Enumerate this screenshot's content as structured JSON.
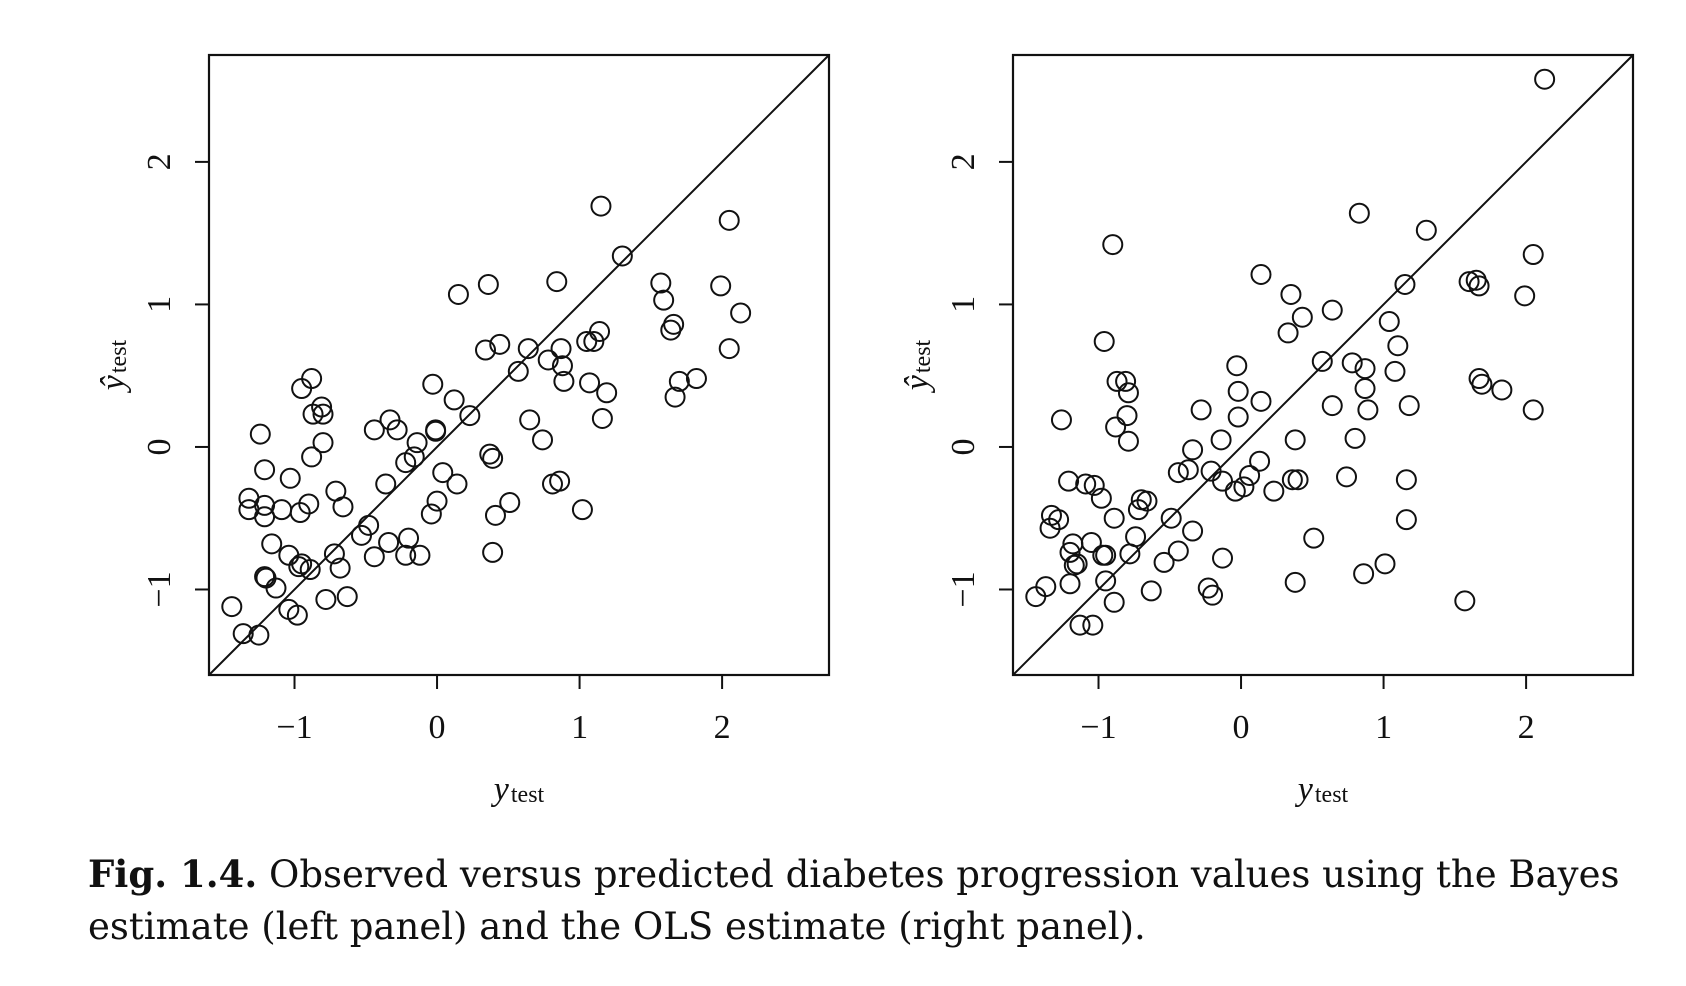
{
  "caption": {
    "label": "Fig. 1.4.",
    "text": "Observed versus predicted diabetes progression values using the Bayes estimate (left panel) and the OLS estimate (right panel)."
  },
  "chart_data": [
    {
      "type": "scatter",
      "xlabel": {
        "main": "y",
        "sub": "test"
      },
      "ylabel": {
        "main": "ŷ",
        "sub": "test"
      },
      "xlim": [
        -1.6,
        2.75
      ],
      "ylim": [
        -1.6,
        2.75
      ],
      "x_ticks": [
        -1,
        0,
        1,
        2
      ],
      "y_ticks": [
        -1,
        0,
        1,
        2
      ],
      "x_tick_labels": [
        "−1",
        "0",
        "1",
        "2"
      ],
      "y_tick_labels": [
        "−1",
        "0",
        "1",
        "2"
      ],
      "reference_line": "y = x",
      "grid": false,
      "points": [
        [
          -1.44,
          -1.12
        ],
        [
          -1.36,
          -1.31
        ],
        [
          -1.25,
          -1.32
        ],
        [
          -1.32,
          -0.44
        ],
        [
          -1.32,
          -0.36
        ],
        [
          -1.24,
          0.09
        ],
        [
          -1.21,
          -0.16
        ],
        [
          -1.21,
          -0.41
        ],
        [
          -1.21,
          -0.49
        ],
        [
          -1.16,
          -0.68
        ],
        [
          -1.13,
          -0.99
        ],
        [
          -1.2,
          -0.92
        ],
        [
          -1.21,
          -0.91
        ],
        [
          -1.09,
          -0.44
        ],
        [
          -1.03,
          -0.22
        ],
        [
          -1.04,
          -0.76
        ],
        [
          -1.04,
          -1.14
        ],
        [
          -0.96,
          -0.46
        ],
        [
          -0.97,
          -0.84
        ],
        [
          -0.95,
          -0.82
        ],
        [
          -0.98,
          -1.18
        ],
        [
          -0.89,
          -0.86
        ],
        [
          -0.9,
          -0.4
        ],
        [
          -0.95,
          0.41
        ],
        [
          -0.88,
          0.48
        ],
        [
          -0.87,
          0.23
        ],
        [
          -0.8,
          0.23
        ],
        [
          -0.81,
          0.28
        ],
        [
          -0.8,
          0.03
        ],
        [
          -0.88,
          -0.07
        ],
        [
          -0.78,
          -1.07
        ],
        [
          -0.72,
          -0.75
        ],
        [
          -0.71,
          -0.31
        ],
        [
          -0.66,
          -0.42
        ],
        [
          -0.68,
          -0.85
        ],
        [
          -0.63,
          -1.05
        ],
        [
          -0.53,
          -0.62
        ],
        [
          -0.48,
          -0.55
        ],
        [
          -0.44,
          0.12
        ],
        [
          -0.44,
          -0.77
        ],
        [
          -0.36,
          -0.26
        ],
        [
          -0.34,
          -0.67
        ],
        [
          -0.33,
          0.19
        ],
        [
          -0.28,
          0.12
        ],
        [
          -0.22,
          -0.11
        ],
        [
          -0.22,
          -0.76
        ],
        [
          -0.2,
          -0.64
        ],
        [
          -0.16,
          -0.07
        ],
        [
          -0.14,
          0.03
        ],
        [
          -0.12,
          -0.76
        ],
        [
          -0.04,
          -0.47
        ],
        [
          -0.03,
          0.44
        ],
        [
          -0.01,
          0.11
        ],
        [
          -0.01,
          0.12
        ],
        [
          0.0,
          -0.38
        ],
        [
          0.04,
          -0.18
        ],
        [
          0.12,
          0.33
        ],
        [
          0.14,
          -0.26
        ],
        [
          0.15,
          1.07
        ],
        [
          0.23,
          0.22
        ],
        [
          0.34,
          0.68
        ],
        [
          0.36,
          1.14
        ],
        [
          0.37,
          -0.05
        ],
        [
          0.39,
          -0.08
        ],
        [
          0.39,
          -0.74
        ],
        [
          0.41,
          -0.48
        ],
        [
          0.44,
          0.72
        ],
        [
          0.51,
          -0.39
        ],
        [
          0.57,
          0.53
        ],
        [
          0.64,
          0.69
        ],
        [
          0.65,
          0.19
        ],
        [
          0.74,
          0.05
        ],
        [
          0.78,
          0.61
        ],
        [
          0.81,
          -0.26
        ],
        [
          0.84,
          1.16
        ],
        [
          0.86,
          -0.24
        ],
        [
          0.87,
          0.69
        ],
        [
          0.88,
          0.57
        ],
        [
          0.89,
          0.46
        ],
        [
          1.02,
          -0.44
        ],
        [
          1.05,
          0.74
        ],
        [
          1.07,
          0.45
        ],
        [
          1.1,
          0.74
        ],
        [
          1.14,
          0.81
        ],
        [
          1.15,
          1.69
        ],
        [
          1.16,
          0.2
        ],
        [
          1.19,
          0.38
        ],
        [
          1.3,
          1.34
        ],
        [
          1.57,
          1.15
        ],
        [
          1.59,
          1.03
        ],
        [
          1.64,
          0.82
        ],
        [
          1.66,
          0.86
        ],
        [
          1.67,
          0.35
        ],
        [
          1.7,
          0.46
        ],
        [
          1.82,
          0.48
        ],
        [
          1.99,
          1.13
        ],
        [
          2.05,
          1.59
        ],
        [
          2.05,
          0.69
        ],
        [
          2.13,
          0.94
        ]
      ]
    },
    {
      "type": "scatter",
      "xlabel": {
        "main": "y",
        "sub": "test"
      },
      "ylabel": {
        "main": "ŷ",
        "sub": "test"
      },
      "xlim": [
        -1.6,
        2.75
      ],
      "ylim": [
        -1.6,
        2.75
      ],
      "x_ticks": [
        -1,
        0,
        1,
        2
      ],
      "y_ticks": [
        -1,
        0,
        1,
        2
      ],
      "x_tick_labels": [
        "−1",
        "0",
        "1",
        "2"
      ],
      "y_tick_labels": [
        "−1",
        "0",
        "1",
        "2"
      ],
      "reference_line": "y = x",
      "grid": false,
      "points": [
        [
          -1.44,
          -1.05
        ],
        [
          -1.37,
          -0.98
        ],
        [
          -1.34,
          -0.57
        ],
        [
          -1.33,
          -0.48
        ],
        [
          -1.28,
          -0.51
        ],
        [
          -1.26,
          0.19
        ],
        [
          -1.21,
          -0.24
        ],
        [
          -1.2,
          -0.74
        ],
        [
          -1.2,
          -0.96
        ],
        [
          -1.18,
          -0.68
        ],
        [
          -1.17,
          -0.83
        ],
        [
          -1.15,
          -0.82
        ],
        [
          -1.13,
          -1.25
        ],
        [
          -1.09,
          -0.26
        ],
        [
          -1.05,
          -0.67
        ],
        [
          -1.04,
          -1.25
        ],
        [
          -1.03,
          -0.27
        ],
        [
          -0.98,
          -0.36
        ],
        [
          -0.97,
          -0.76
        ],
        [
          -0.96,
          0.74
        ],
        [
          -0.95,
          -0.94
        ],
        [
          -0.95,
          -0.76
        ],
        [
          -0.9,
          1.42
        ],
        [
          -0.89,
          -1.09
        ],
        [
          -0.89,
          -0.5
        ],
        [
          -0.88,
          0.14
        ],
        [
          -0.87,
          0.46
        ],
        [
          -0.81,
          0.46
        ],
        [
          -0.8,
          0.22
        ],
        [
          -0.79,
          0.38
        ],
        [
          -0.79,
          0.04
        ],
        [
          -0.78,
          -0.75
        ],
        [
          -0.74,
          -0.63
        ],
        [
          -0.72,
          -0.44
        ],
        [
          -0.7,
          -0.37
        ],
        [
          -0.66,
          -0.38
        ],
        [
          -0.63,
          -1.01
        ],
        [
          -0.54,
          -0.81
        ],
        [
          -0.49,
          -0.5
        ],
        [
          -0.44,
          -0.18
        ],
        [
          -0.44,
          -0.73
        ],
        [
          -0.37,
          -0.16
        ],
        [
          -0.34,
          -0.02
        ],
        [
          -0.34,
          -0.59
        ],
        [
          -0.28,
          0.26
        ],
        [
          -0.23,
          -0.99
        ],
        [
          -0.21,
          -0.17
        ],
        [
          -0.2,
          -1.04
        ],
        [
          -0.14,
          0.05
        ],
        [
          -0.13,
          -0.78
        ],
        [
          -0.13,
          -0.24
        ],
        [
          -0.04,
          -0.31
        ],
        [
          -0.02,
          0.21
        ],
        [
          -0.02,
          0.39
        ],
        [
          -0.03,
          0.57
        ],
        [
          0.02,
          -0.28
        ],
        [
          0.06,
          -0.2
        ],
        [
          0.13,
          -0.1
        ],
        [
          0.14,
          0.32
        ],
        [
          0.14,
          1.21
        ],
        [
          0.23,
          -0.31
        ],
        [
          0.33,
          0.8
        ],
        [
          0.35,
          1.07
        ],
        [
          0.36,
          -0.23
        ],
        [
          0.38,
          -0.95
        ],
        [
          0.38,
          0.05
        ],
        [
          0.4,
          -0.23
        ],
        [
          0.43,
          0.91
        ],
        [
          0.51,
          -0.64
        ],
        [
          0.57,
          0.6
        ],
        [
          0.64,
          0.96
        ],
        [
          0.64,
          0.29
        ],
        [
          0.74,
          -0.21
        ],
        [
          0.78,
          0.59
        ],
        [
          0.8,
          0.06
        ],
        [
          0.83,
          1.64
        ],
        [
          0.86,
          -0.89
        ],
        [
          0.87,
          0.41
        ],
        [
          0.87,
          0.55
        ],
        [
          0.89,
          0.26
        ],
        [
          1.01,
          -0.82
        ],
        [
          1.04,
          0.88
        ],
        [
          1.08,
          0.53
        ],
        [
          1.1,
          0.71
        ],
        [
          1.15,
          1.14
        ],
        [
          1.16,
          -0.23
        ],
        [
          1.16,
          -0.51
        ],
        [
          1.18,
          0.29
        ],
        [
          1.3,
          1.52
        ],
        [
          1.57,
          -1.08
        ],
        [
          1.6,
          1.16
        ],
        [
          1.65,
          1.17
        ],
        [
          1.67,
          1.13
        ],
        [
          1.67,
          0.48
        ],
        [
          1.69,
          0.44
        ],
        [
          1.83,
          0.4
        ],
        [
          1.99,
          1.06
        ],
        [
          2.05,
          1.35
        ],
        [
          2.05,
          0.26
        ],
        [
          2.13,
          2.58
        ]
      ]
    }
  ]
}
